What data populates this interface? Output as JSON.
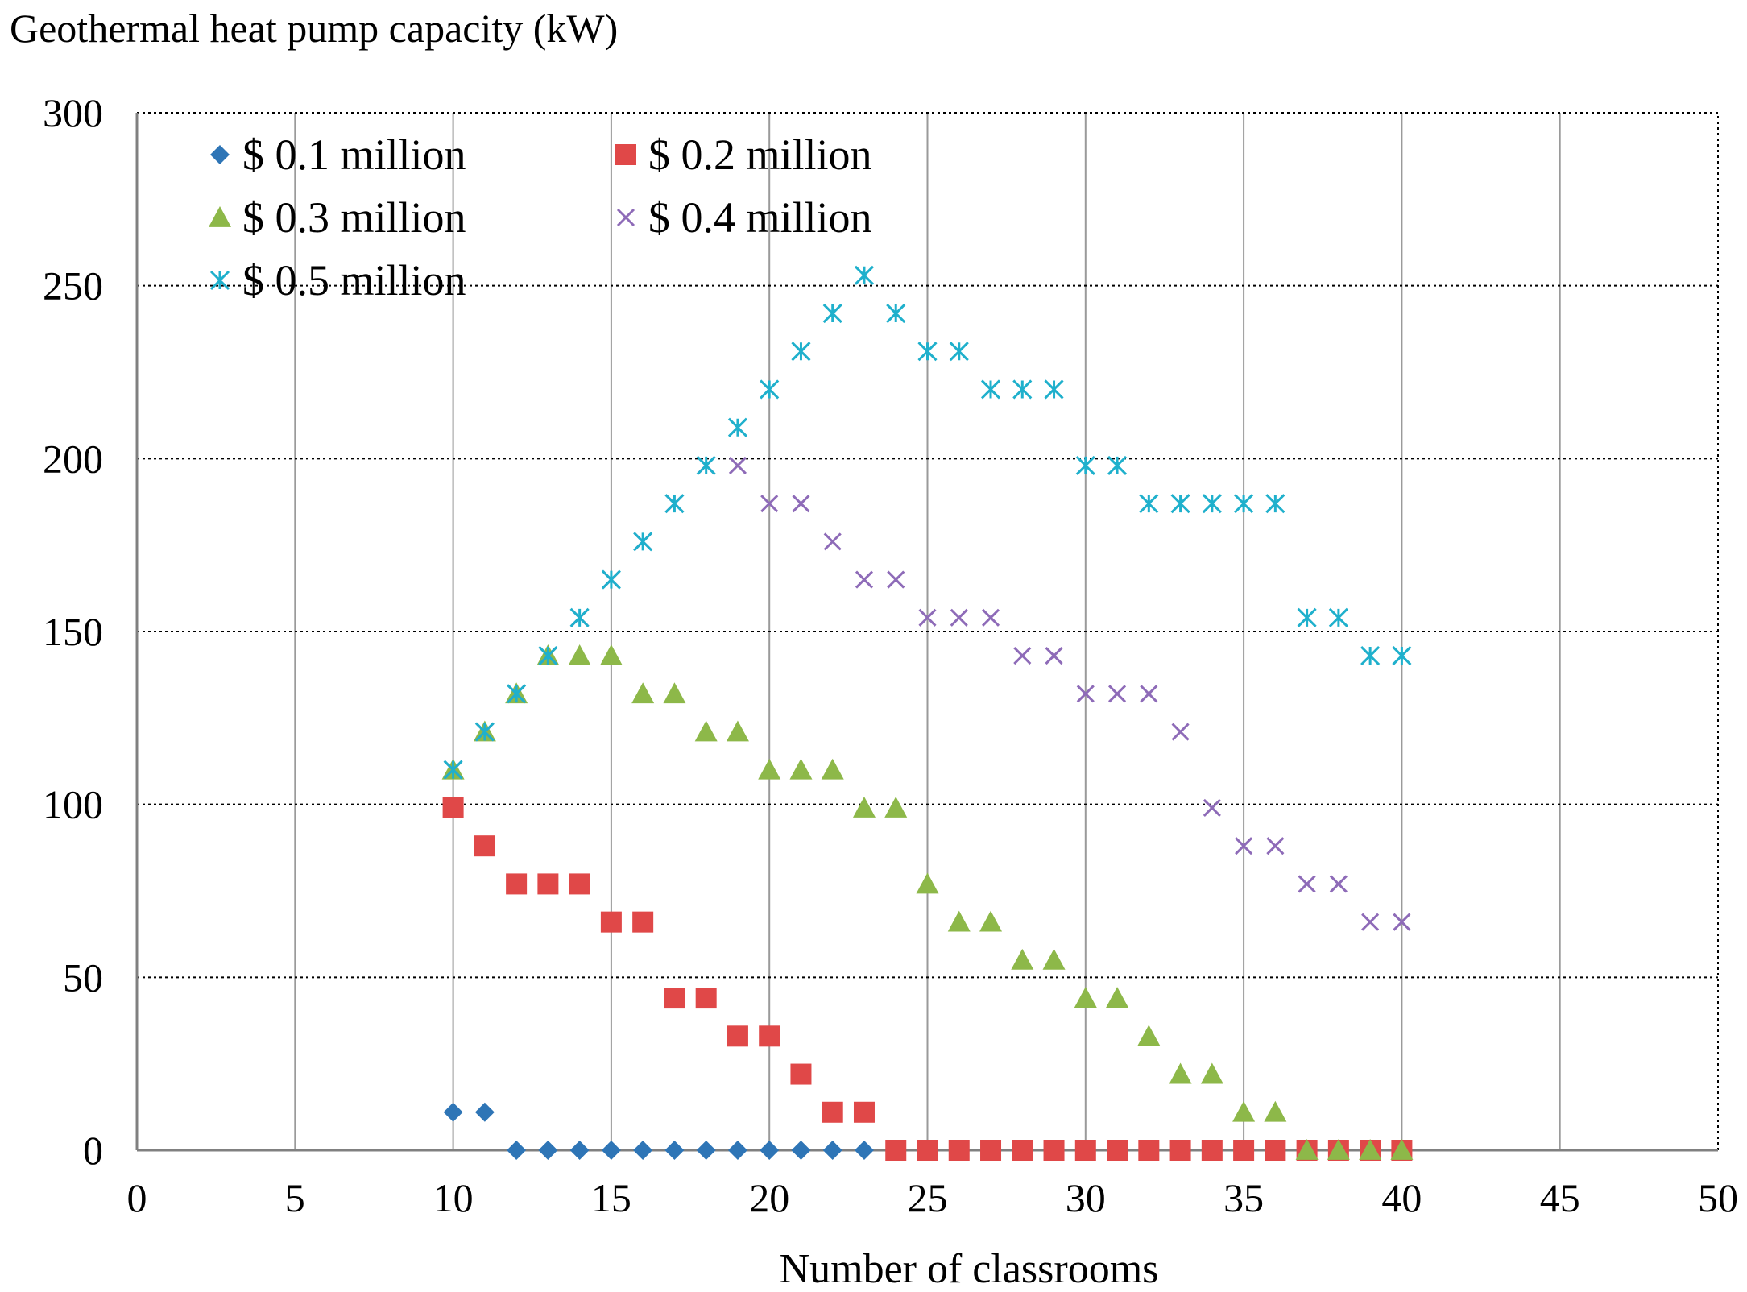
{
  "chart_data": {
    "type": "scatter",
    "title": "",
    "ylabel": "Geothermal heat pump capacity (kW)",
    "xlabel": "Number of classrooms",
    "xlim": [
      0,
      50
    ],
    "ylim": [
      0,
      300
    ],
    "x_ticks": [
      0,
      5,
      10,
      15,
      20,
      25,
      30,
      35,
      40,
      45,
      50
    ],
    "y_ticks": [
      0,
      50,
      100,
      150,
      200,
      250,
      300
    ],
    "legend_position": "top-left",
    "series": [
      {
        "name": "$ 0.1 million",
        "marker": "diamond",
        "color": "#2E75B6",
        "x": [
          10,
          11,
          12,
          13,
          14,
          15,
          16,
          17,
          18,
          19,
          20,
          21,
          22,
          23
        ],
        "y": [
          11,
          11,
          0,
          0,
          0,
          0,
          0,
          0,
          0,
          0,
          0,
          0,
          0,
          0
        ]
      },
      {
        "name": "$ 0.2 million",
        "marker": "square",
        "color": "#E04848",
        "x": [
          10,
          11,
          12,
          13,
          14,
          15,
          16,
          17,
          18,
          19,
          20,
          21,
          22,
          23,
          24,
          25,
          26,
          27,
          28,
          29,
          30,
          31,
          32,
          33,
          34,
          35,
          36,
          37,
          38,
          39,
          40
        ],
        "y": [
          99,
          88,
          77,
          77,
          77,
          66,
          66,
          44,
          44,
          33,
          33,
          22,
          11,
          11,
          0,
          0,
          0,
          0,
          0,
          0,
          0,
          0,
          0,
          0,
          0,
          0,
          0,
          0,
          0,
          0,
          0
        ]
      },
      {
        "name": "$ 0.3 million",
        "marker": "triangle",
        "color": "#8DB849",
        "x": [
          10,
          11,
          12,
          13,
          14,
          15,
          16,
          17,
          18,
          19,
          20,
          21,
          22,
          23,
          24,
          25,
          26,
          27,
          28,
          29,
          30,
          31,
          32,
          33,
          34,
          35,
          36,
          37,
          38,
          39,
          40
        ],
        "y": [
          110,
          121,
          132,
          143,
          143,
          143,
          132,
          132,
          121,
          121,
          110,
          110,
          110,
          99,
          99,
          77,
          66,
          66,
          55,
          55,
          44,
          44,
          33,
          22,
          22,
          11,
          11,
          0,
          0,
          0,
          0
        ]
      },
      {
        "name": "$ 0.4 million",
        "marker": "x",
        "color": "#8E6BB8",
        "x": [
          10,
          11,
          12,
          13,
          14,
          15,
          16,
          17,
          18,
          19,
          20,
          21,
          22,
          23,
          24,
          25,
          26,
          27,
          28,
          29,
          30,
          31,
          32,
          33,
          34,
          35,
          36,
          37,
          38,
          39,
          40
        ],
        "y": [
          110,
          121,
          132,
          143,
          154,
          165,
          176,
          187,
          198,
          198,
          187,
          187,
          176,
          165,
          165,
          154,
          154,
          154,
          143,
          143,
          132,
          132,
          132,
          121,
          99,
          88,
          88,
          77,
          77,
          66,
          66
        ]
      },
      {
        "name": "$ 0.5 million",
        "marker": "asterisk",
        "color": "#1FB0CC",
        "x": [
          10,
          11,
          12,
          13,
          14,
          15,
          16,
          17,
          18,
          19,
          20,
          21,
          22,
          23,
          24,
          25,
          26,
          27,
          28,
          29,
          30,
          31,
          32,
          33,
          34,
          35,
          36,
          37,
          38,
          39,
          40
        ],
        "y": [
          110,
          121,
          132,
          143,
          154,
          165,
          176,
          187,
          198,
          209,
          220,
          231,
          242,
          253,
          242,
          231,
          231,
          220,
          220,
          220,
          198,
          198,
          187,
          187,
          187,
          187,
          187,
          154,
          154,
          143,
          143
        ]
      }
    ]
  }
}
